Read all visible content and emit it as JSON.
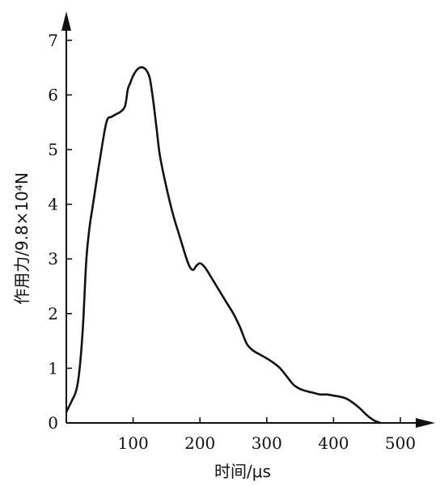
{
  "chart_data": {
    "type": "line",
    "title": "",
    "xlabel": "时间/μs",
    "ylabel": "作用力/9.8×10⁴N",
    "xlim": [
      0,
      520
    ],
    "ylim": [
      0,
      7.5
    ],
    "x_ticks": [
      100,
      200,
      300,
      400,
      500
    ],
    "y_ticks": [
      0,
      1,
      2,
      3,
      4,
      5,
      6,
      7
    ],
    "grid": false,
    "series": [
      {
        "x": [
          0,
          8,
          15,
          20,
          25,
          30,
          35,
          40,
          50,
          60,
          68,
          75,
          82,
          88,
          92,
          95,
          100,
          105,
          110,
          115,
          120,
          125,
          130,
          135,
          140,
          150,
          160,
          170,
          180,
          185,
          190,
          195,
          200,
          205,
          210,
          220,
          230,
          240,
          250,
          260,
          270,
          280,
          290,
          300,
          310,
          320,
          330,
          340,
          350,
          360,
          370,
          380,
          390,
          400,
          410,
          420,
          430,
          440,
          450,
          460,
          470
        ],
        "y": [
          0.2,
          0.4,
          0.6,
          1.0,
          1.8,
          3.0,
          3.6,
          4.0,
          4.8,
          5.5,
          5.6,
          5.65,
          5.7,
          5.8,
          6.1,
          6.2,
          6.35,
          6.45,
          6.5,
          6.5,
          6.45,
          6.3,
          5.9,
          5.4,
          4.9,
          4.3,
          3.8,
          3.4,
          3.0,
          2.85,
          2.8,
          2.88,
          2.92,
          2.88,
          2.8,
          2.6,
          2.4,
          2.2,
          2.0,
          1.75,
          1.45,
          1.32,
          1.25,
          1.18,
          1.1,
          1.0,
          0.85,
          0.7,
          0.62,
          0.58,
          0.55,
          0.52,
          0.52,
          0.5,
          0.48,
          0.44,
          0.36,
          0.26,
          0.14,
          0.05,
          0.0
        ]
      }
    ]
  }
}
